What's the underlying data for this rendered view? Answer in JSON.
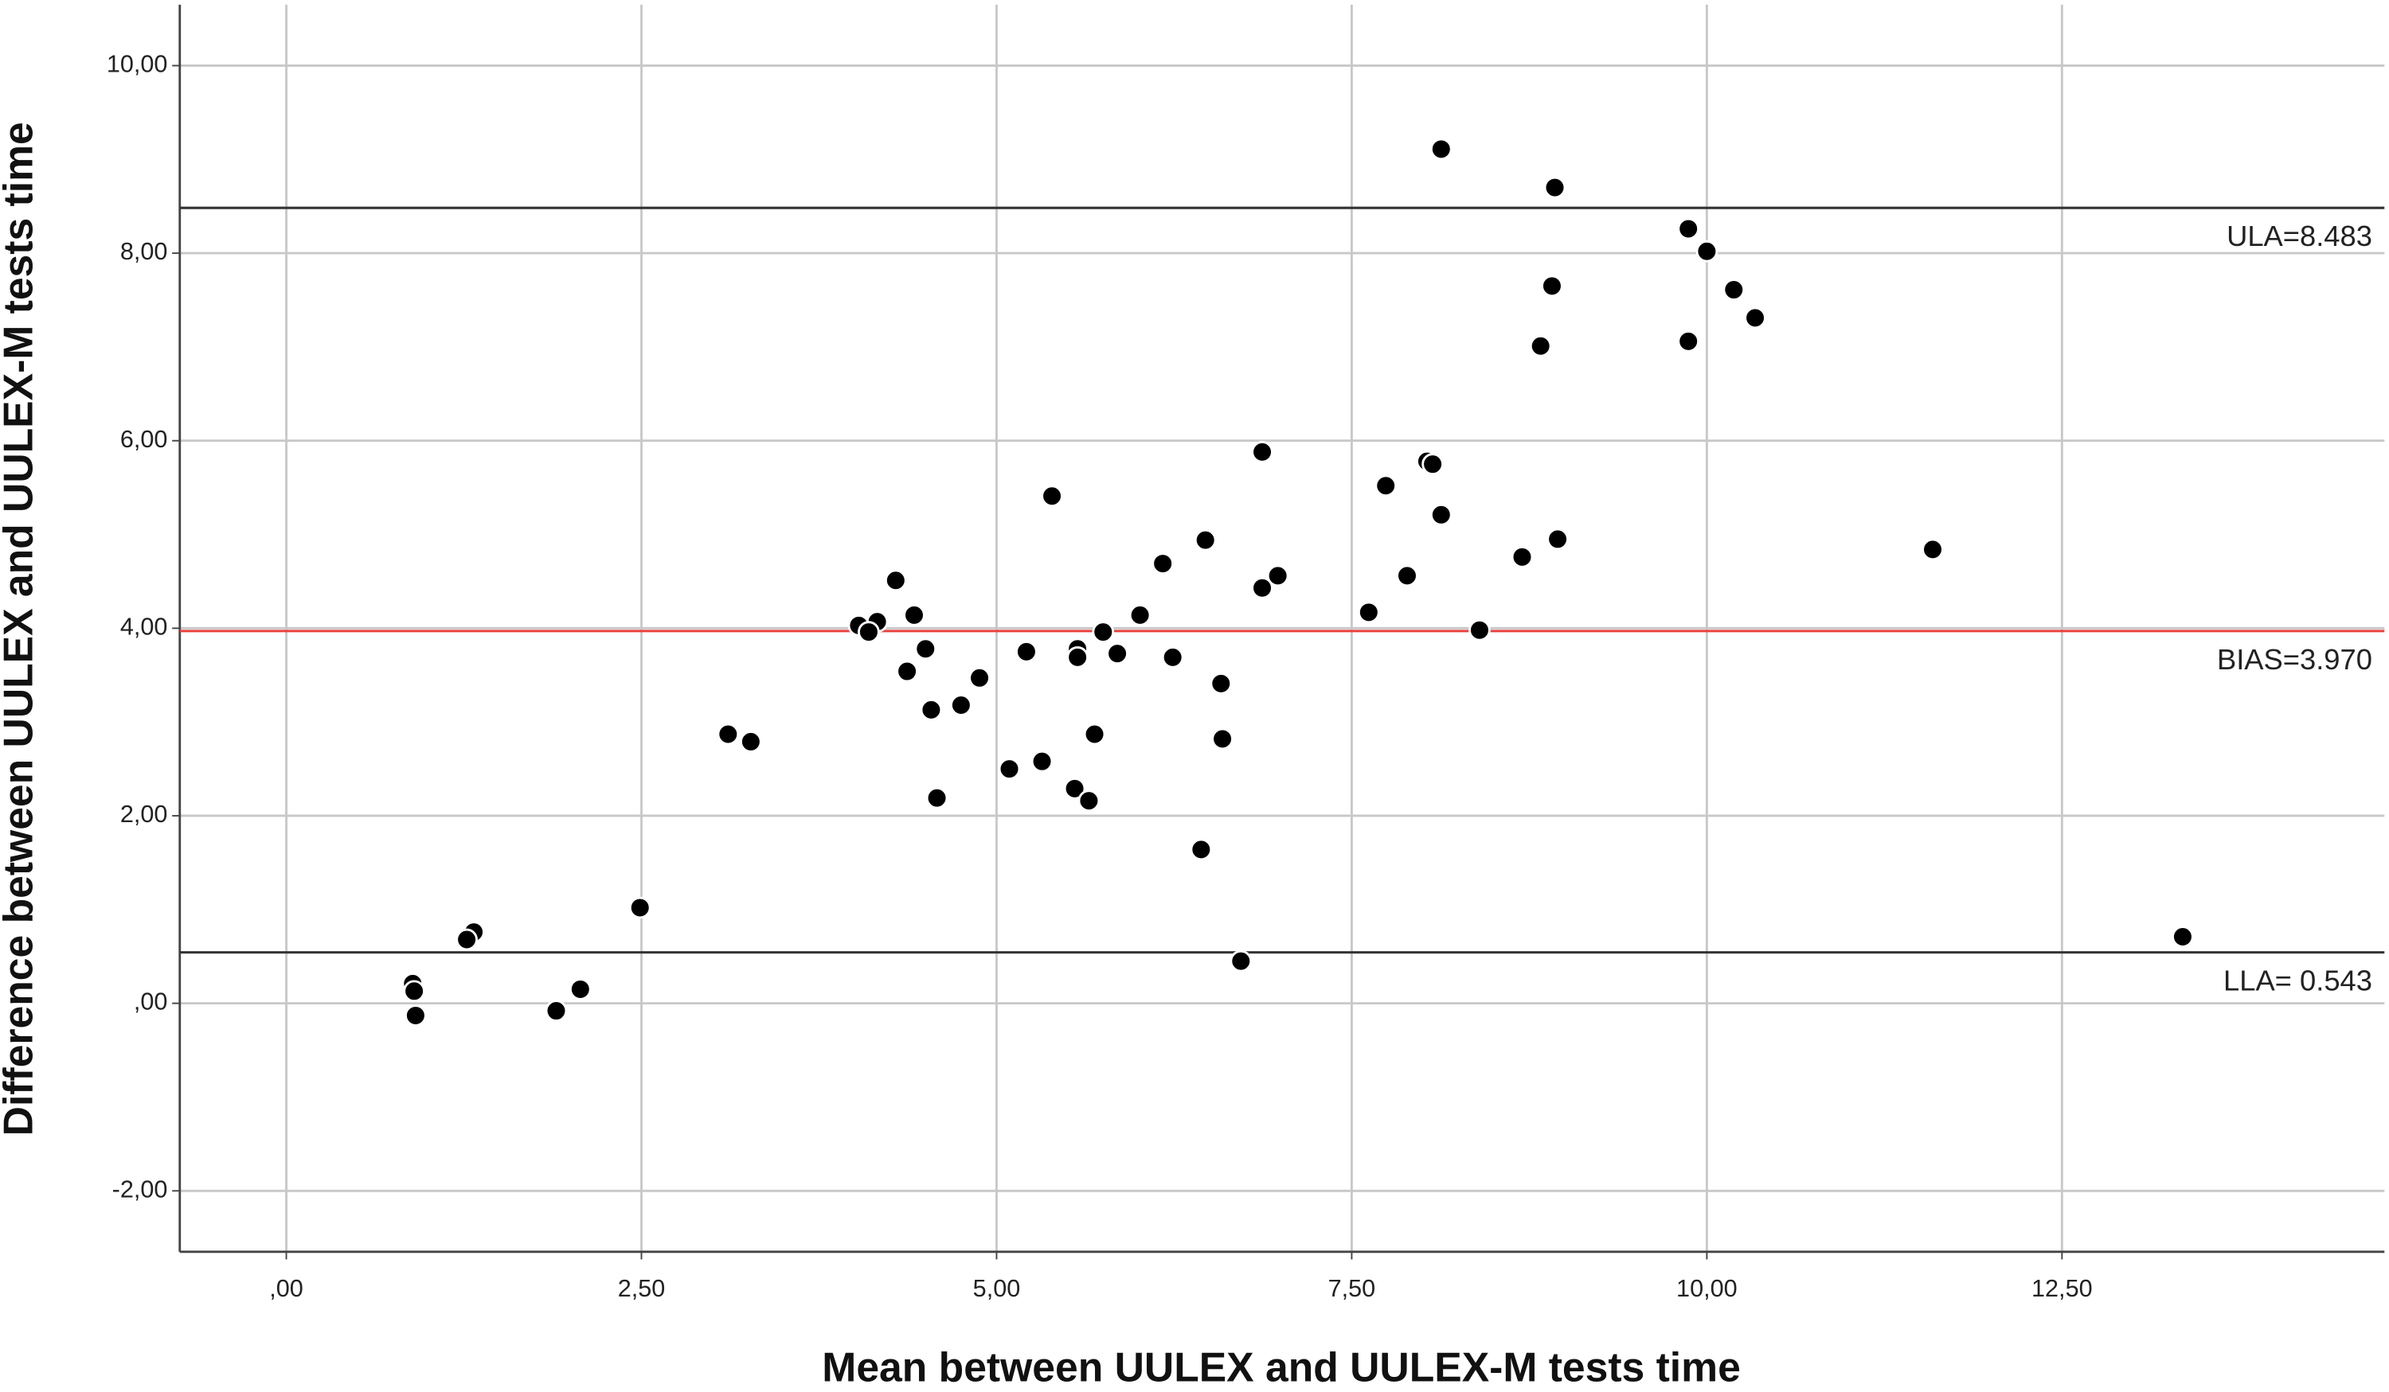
{
  "chart_data": {
    "type": "scatter",
    "x_label": "Mean between UULEX and UULEX-M tests time",
    "y_label": "Difference between UULEX and UULEX-M tests time",
    "xlim": [
      -0.75,
      14.77
    ],
    "ylim": [
      -2.65,
      10.65
    ],
    "xticks": [
      {
        "value": 0,
        "label": ",00"
      },
      {
        "value": 2.5,
        "label": "2,50"
      },
      {
        "value": 5,
        "label": "5,00"
      },
      {
        "value": 7.5,
        "label": "7,50"
      },
      {
        "value": 10,
        "label": "10,00"
      },
      {
        "value": 12.5,
        "label": "12,50"
      }
    ],
    "yticks": [
      {
        "value": -2,
        "label": "-2,00"
      },
      {
        "value": 0,
        "label": ",00"
      },
      {
        "value": 2,
        "label": "2,00"
      },
      {
        "value": 4,
        "label": "4,00"
      },
      {
        "value": 6,
        "label": "6,00"
      },
      {
        "value": 8,
        "label": "8,00"
      },
      {
        "value": 10,
        "label": "10,00"
      }
    ],
    "grid": true,
    "color": "#000000",
    "ref_lines": [
      {
        "value": 8.483,
        "label": "ULA=8.483",
        "color": "#333333"
      },
      {
        "value": 3.97,
        "label": "BIAS=3.970",
        "color": "#e8413c"
      },
      {
        "value": 0.543,
        "label": "LLA= 0.543",
        "color": "#333333"
      }
    ],
    "x": [
      8.13,
      8.93,
      9.87,
      10.0,
      8.91,
      10.19,
      10.34,
      8.83,
      9.87,
      6.87,
      8.03,
      8.07,
      7.74,
      5.39,
      8.13,
      8.95,
      6.47,
      11.59,
      8.7,
      6.17,
      6.98,
      7.89,
      6.87,
      4.29,
      7.62,
      4.42,
      6.01,
      4.16,
      4.03,
      4.1,
      8.4,
      5.75,
      4.5,
      5.57,
      5.21,
      5.85,
      5.57,
      6.24,
      4.37,
      4.88,
      6.58,
      4.75,
      4.54,
      3.11,
      3.27,
      5.69,
      6.59,
      5.32,
      5.09,
      5.55,
      5.65,
      4.58,
      6.44,
      2.49,
      1.32,
      1.27,
      13.35,
      6.72,
      0.89,
      0.9,
      2.07,
      1.9,
      0.91
    ],
    "values": [
      9.11,
      8.7,
      8.26,
      8.02,
      7.65,
      7.61,
      7.31,
      7.01,
      7.06,
      5.88,
      5.78,
      5.75,
      5.52,
      5.41,
      5.21,
      4.95,
      4.94,
      4.84,
      4.76,
      4.69,
      4.56,
      4.56,
      4.43,
      4.51,
      4.17,
      4.14,
      4.14,
      4.07,
      4.03,
      3.96,
      3.98,
      3.96,
      3.78,
      3.78,
      3.75,
      3.73,
      3.69,
      3.69,
      3.54,
      3.47,
      3.41,
      3.18,
      3.13,
      2.87,
      2.79,
      2.87,
      2.82,
      2.58,
      2.5,
      2.29,
      2.16,
      2.19,
      1.64,
      1.02,
      0.76,
      0.68,
      0.71,
      0.45,
      0.21,
      0.13,
      0.15,
      -0.08,
      -0.13
    ]
  }
}
